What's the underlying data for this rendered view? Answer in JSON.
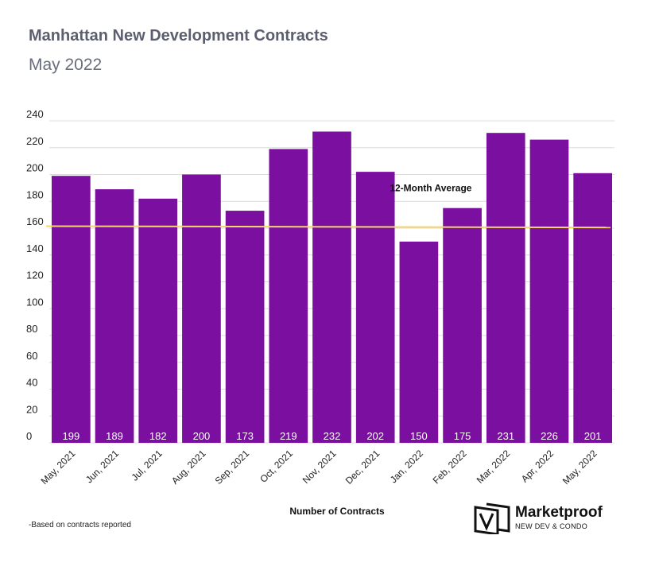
{
  "header": {
    "title": "Manhattan New Development Contracts",
    "subtitle": "May 2022"
  },
  "footnote": "-Based on contracts reported",
  "brand": {
    "name": "Marketproof",
    "tagline": "NEW DEV & CONDO"
  },
  "colors": {
    "bar": "#7a0fa0",
    "average_line": "#f5d56c",
    "grid": "#dcdcdc",
    "bar_label": "#ffffff"
  },
  "chart_data": {
    "type": "bar",
    "title": "Manhattan New Development Contracts",
    "subtitle": "May 2022",
    "xlabel": "Number of Contracts",
    "ylabel": "",
    "categories": [
      "May, 2021",
      "Jun, 2021",
      "Jul, 2021",
      "Aug, 2021",
      "Sep, 2021",
      "Oct, 2021",
      "Nov, 2021",
      "Dec, 2021",
      "Jan, 2022",
      "Feb, 2022",
      "Mar, 2022",
      "Apr, 2022",
      "May, 2022"
    ],
    "values": [
      199,
      189,
      182,
      200,
      173,
      219,
      232,
      202,
      150,
      175,
      231,
      226,
      201
    ],
    "data_labels": true,
    "ylim": [
      0,
      240
    ],
    "yticks": [
      0,
      20,
      40,
      60,
      80,
      100,
      120,
      140,
      160,
      180,
      200,
      220,
      240
    ],
    "grid": true,
    "average_line": {
      "label": "12-Month Average",
      "start_value": 161.5,
      "end_value": 160.5
    }
  }
}
